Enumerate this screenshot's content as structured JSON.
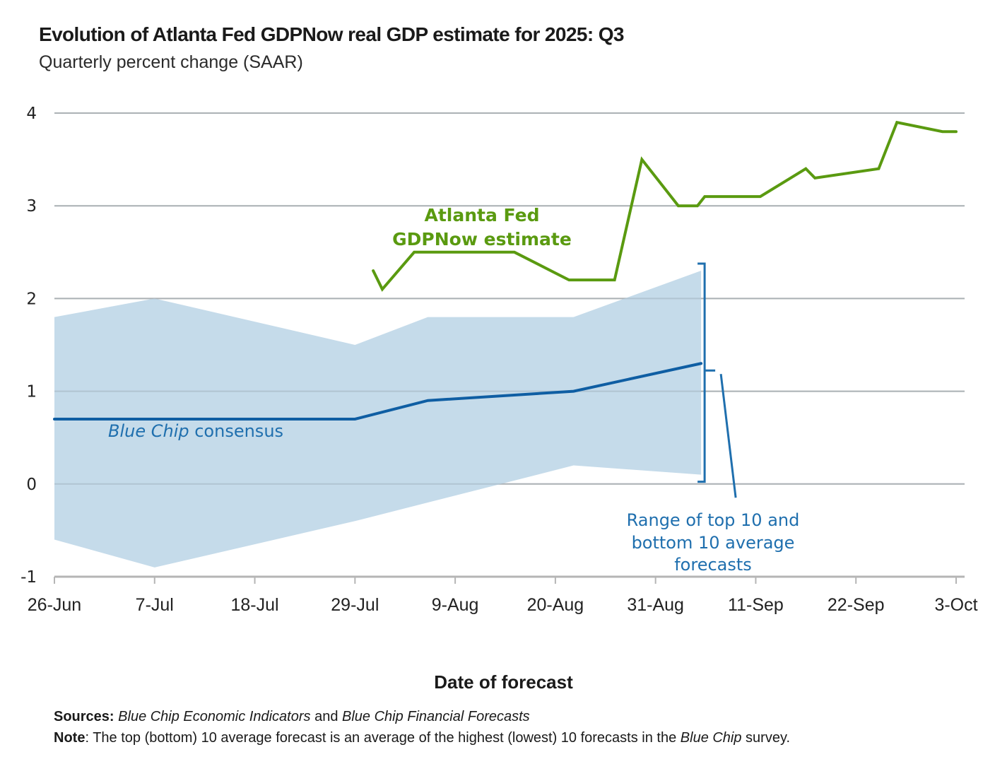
{
  "header": {
    "title": "Evolution of Atlanta Fed GDPNow real GDP estimate for 2025: Q3",
    "subtitle": "Quarterly percent change (SAAR)"
  },
  "chart_data": {
    "type": "line",
    "title": "Evolution of Atlanta Fed GDPNow real GDP estimate for 2025: Q3",
    "subtitle": "Quarterly percent change (SAAR)",
    "xlabel": "Date of forecast",
    "ylabel": "",
    "x_unit": "days since 26-Jun",
    "xlim": [
      0,
      99
    ],
    "ylim": [
      -1,
      4
    ],
    "grid": true,
    "y_ticks": [
      4,
      3,
      2,
      1,
      0,
      -1
    ],
    "x_ticks": [
      {
        "day": 0,
        "label": "26-Jun"
      },
      {
        "day": 11,
        "label": "7-Jul"
      },
      {
        "day": 22,
        "label": "18-Jul"
      },
      {
        "day": 33,
        "label": "29-Jul"
      },
      {
        "day": 44,
        "label": "9-Aug"
      },
      {
        "day": 55,
        "label": "20-Aug"
      },
      {
        "day": 66,
        "label": "31-Aug"
      },
      {
        "day": 77,
        "label": "11-Sep"
      },
      {
        "day": 88,
        "label": "22-Sep"
      },
      {
        "day": 99,
        "label": "3-Oct"
      }
    ],
    "series": [
      {
        "name": "Atlanta Fed GDPNow estimate",
        "color": "#5a9a10",
        "x": [
          35,
          36,
          39.5,
          50.5,
          56.5,
          61.5,
          64.5,
          68.5,
          70.6,
          71.4,
          77.5,
          82.5,
          83.5,
          90.5,
          92.5,
          97.5,
          99
        ],
        "y": [
          2.3,
          2.1,
          2.5,
          2.5,
          2.2,
          2.2,
          3.5,
          3.0,
          3.0,
          3.1,
          3.1,
          3.4,
          3.3,
          3.4,
          3.9,
          3.8,
          3.8
        ]
      },
      {
        "name": "Blue Chip consensus",
        "color": "#0f5ea3",
        "x": [
          0,
          11,
          33,
          41,
          57,
          71
        ],
        "y": [
          0.7,
          0.7,
          0.7,
          0.9,
          1.0,
          1.3
        ]
      }
    ],
    "band": {
      "name": "Range of top 10 and bottom 10 average forecasts",
      "color": "#c5dbea",
      "x": [
        0,
        11,
        33,
        41,
        57,
        71
      ],
      "upper": [
        1.8,
        2.0,
        1.5,
        1.8,
        1.8,
        2.3
      ],
      "lower": [
        -0.6,
        -0.9,
        -0.4,
        -0.2,
        0.2,
        0.1
      ]
    },
    "annotations": {
      "gdpnow_line1": "Atlanta Fed",
      "gdpnow_line2": "GDPNow estimate",
      "consensus_italic": "Blue Chip",
      "consensus_rest": " consensus",
      "range_line1": "Range of top 10 and",
      "range_line2": "bottom 10 average",
      "range_line3": "forecasts"
    }
  },
  "footer": {
    "sources_label": "Sources:",
    "sources_italic1": "Blue Chip Economic Indicators",
    "sources_and": " and ",
    "sources_italic2": "Blue Chip Financial Forecasts",
    "note_label": "Note",
    "note_text1": ": The top (bottom) 10 average forecast is an average of the highest (lowest) 10 forecasts in the ",
    "note_italic": "Blue Chip",
    "note_text2": " survey."
  }
}
